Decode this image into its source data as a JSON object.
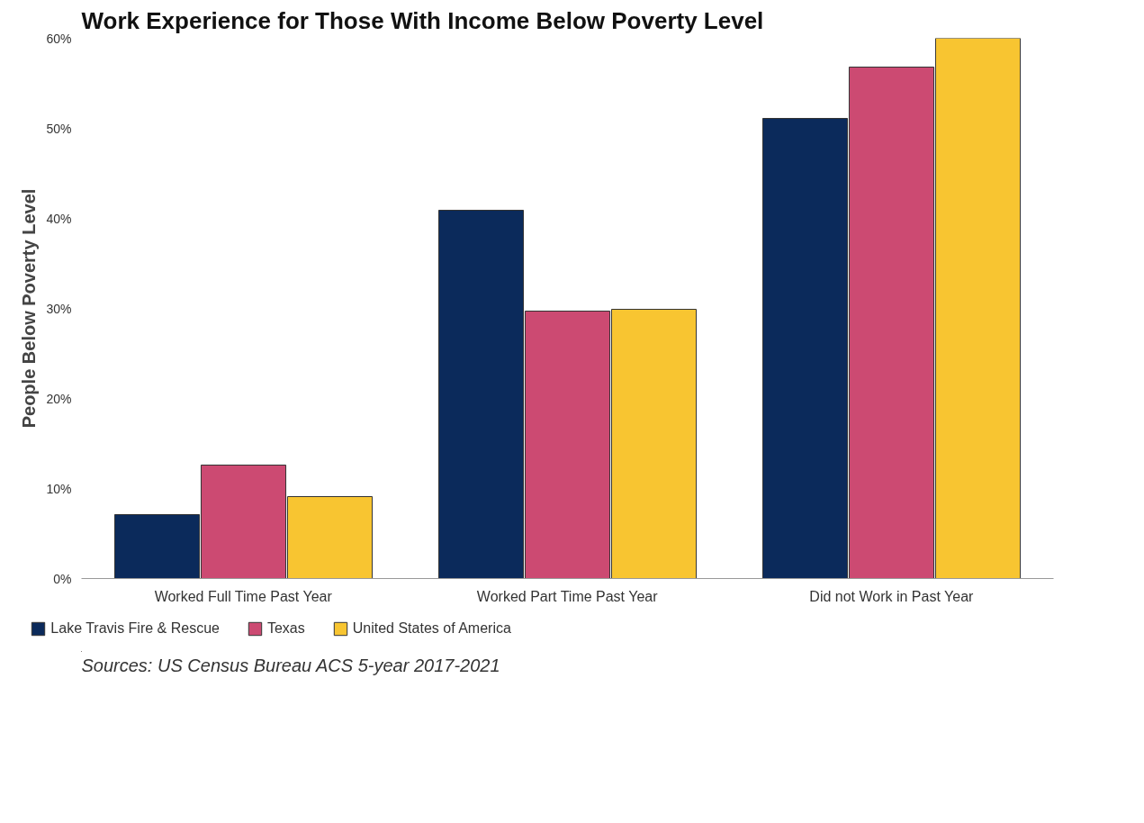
{
  "chart_data": {
    "type": "bar",
    "title": "Work Experience for Those With Income Below Poverty Level",
    "ylabel": "People Below Poverty Level",
    "categories": [
      "Worked Full Time Past Year",
      "Worked Part Time Past Year",
      "Did not Work in Past Year"
    ],
    "series": [
      {
        "name": "Lake Travis Fire & Rescue",
        "color": "#0b2a5b",
        "values": [
          7.1,
          40.9,
          51.1
        ]
      },
      {
        "name": "Texas",
        "color": "#cc4a72",
        "values": [
          12.6,
          29.7,
          56.8
        ]
      },
      {
        "name": "United States of America",
        "color": "#f8c531",
        "values": [
          9.1,
          29.9,
          60.0
        ]
      }
    ],
    "ylim": [
      0,
      60
    ],
    "yticks": [
      {
        "value": 0,
        "label": "0%"
      },
      {
        "value": 10,
        "label": "10%"
      },
      {
        "value": 20,
        "label": "20%"
      },
      {
        "value": 30,
        "label": "30%"
      },
      {
        "value": 40,
        "label": "40%"
      },
      {
        "value": 50,
        "label": "50%"
      },
      {
        "value": 60,
        "label": "60%"
      }
    ],
    "grid": false,
    "legend": "bottom",
    "annotations": [
      "Sources: US Census Bureau ACS 5-year 2017-2021"
    ]
  }
}
